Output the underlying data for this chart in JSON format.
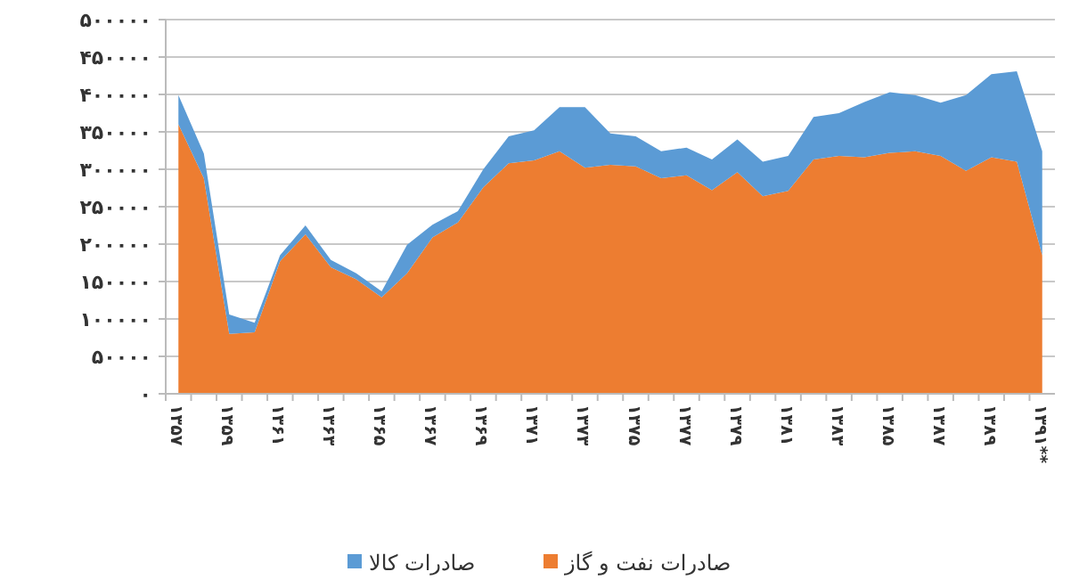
{
  "chart_data": {
    "type": "area",
    "stacked": true,
    "categories": [
      "۱۳۵۷",
      null,
      "۱۳۵۹",
      null,
      "۱۳۶۱",
      null,
      "۱۳۶۳",
      null,
      "۱۳۶۵",
      null,
      "۱۳۶۷",
      null,
      "۱۳۶۹",
      null,
      "۱۳۷۱",
      null,
      "۱۳۷۳",
      null,
      "۱۳۷۵",
      null,
      "۱۳۷۷",
      null,
      "۱۳۷۹",
      null,
      "۱۳۸۱",
      null,
      "۱۳۸۳",
      null,
      "۱۳۸۵",
      null,
      "۱۳۸۷",
      null,
      "۱۳۸۹",
      null,
      "۱۳۹۱**"
    ],
    "series": [
      {
        "name": "صادرات نفت و گاز",
        "color": "#ed7d31",
        "values": [
          360000,
          288000,
          80000,
          82000,
          177000,
          213000,
          169000,
          153000,
          129000,
          161000,
          209000,
          229000,
          276000,
          308000,
          312000,
          324000,
          302000,
          306000,
          304000,
          288000,
          292000,
          272000,
          296000,
          264000,
          271000,
          313000,
          318000,
          316000,
          322000,
          324000,
          318000,
          298000,
          316000,
          310000,
          185000
        ]
      },
      {
        "name": "صادرات کالا",
        "color": "#5b9bd5",
        "values": [
          39000,
          33000,
          26000,
          13000,
          8000,
          12000,
          10000,
          8000,
          8000,
          38000,
          17000,
          15000,
          24000,
          36000,
          40000,
          59000,
          81000,
          42000,
          40000,
          36000,
          37000,
          41000,
          44000,
          46000,
          47000,
          57000,
          57000,
          74000,
          81000,
          75000,
          71000,
          101000,
          111000,
          121000,
          139000
        ]
      }
    ],
    "ylim": [
      0,
      500000
    ],
    "yticks": [
      {
        "value": 0,
        "label": "۰"
      },
      {
        "value": 50000,
        "label": "۵۰۰۰۰"
      },
      {
        "value": 100000,
        "label": "۱۰۰۰۰۰"
      },
      {
        "value": 150000,
        "label": "۱۵۰۰۰۰"
      },
      {
        "value": 200000,
        "label": "۲۰۰۰۰۰"
      },
      {
        "value": 250000,
        "label": "۲۵۰۰۰۰"
      },
      {
        "value": 300000,
        "label": "۳۰۰۰۰۰"
      },
      {
        "value": 350000,
        "label": "۳۵۰۰۰۰"
      },
      {
        "value": 400000,
        "label": "۴۰۰۰۰۰"
      },
      {
        "value": 450000,
        "label": "۴۵۰۰۰۰"
      },
      {
        "value": 500000,
        "label": "۵۰۰۰۰۰"
      }
    ],
    "grid": "y",
    "legend": "bottom"
  }
}
